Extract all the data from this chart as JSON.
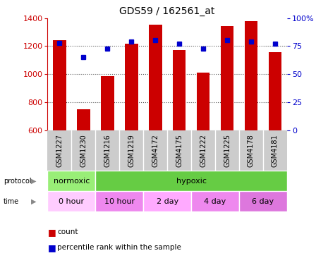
{
  "title": "GDS59 / 162561_at",
  "samples": [
    "GSM1227",
    "GSM1230",
    "GSM1216",
    "GSM1219",
    "GSM4172",
    "GSM4175",
    "GSM1222",
    "GSM1225",
    "GSM4178",
    "GSM4181"
  ],
  "counts": [
    1240,
    750,
    985,
    1215,
    1355,
    1170,
    1010,
    1345,
    1380,
    1155
  ],
  "percentiles": [
    78,
    65,
    73,
    79,
    80,
    77,
    73,
    80,
    79,
    77
  ],
  "ylim_left": [
    600,
    1400
  ],
  "ylim_right": [
    0,
    100
  ],
  "yticks_left": [
    600,
    800,
    1000,
    1200,
    1400
  ],
  "yticks_right": [
    0,
    25,
    50,
    75,
    100
  ],
  "bar_color": "#cc0000",
  "dot_color": "#0000cc",
  "fig_bg_color": "#ffffff",
  "sample_bg_color": "#cccccc",
  "protocol_groups": [
    {
      "label": "normoxic",
      "start": 0,
      "end": 2,
      "color": "#99ee77"
    },
    {
      "label": "hypoxic",
      "start": 2,
      "end": 10,
      "color": "#66cc44"
    }
  ],
  "time_groups": [
    {
      "label": "0 hour",
      "start": 0,
      "end": 2,
      "color": "#ffccff"
    },
    {
      "label": "10 hour",
      "start": 2,
      "end": 4,
      "color": "#ee88ee"
    },
    {
      "label": "2 day",
      "start": 4,
      "end": 6,
      "color": "#ffaaff"
    },
    {
      "label": "4 day",
      "start": 6,
      "end": 8,
      "color": "#ee88ee"
    },
    {
      "label": "6 day",
      "start": 8,
      "end": 10,
      "color": "#dd77dd"
    }
  ],
  "left_axis_color": "#cc0000",
  "right_axis_color": "#0000cc",
  "n_samples": 10
}
